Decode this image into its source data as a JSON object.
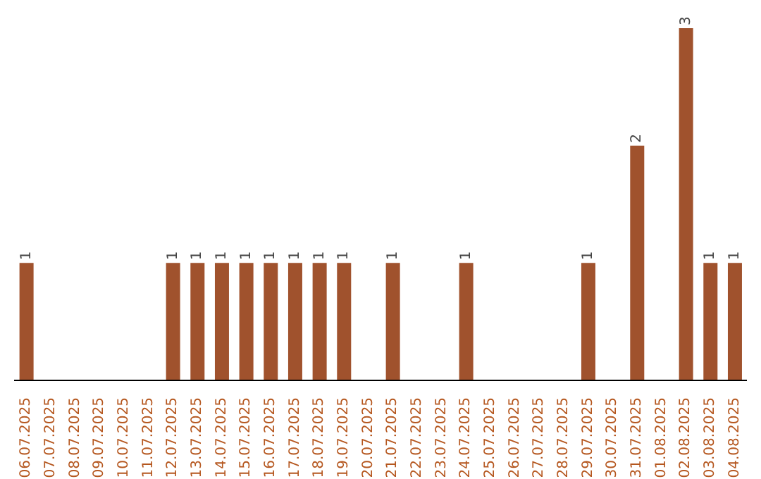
{
  "chart_data": {
    "type": "bar",
    "categories": [
      "06.07.2025",
      "07.07.2025",
      "08.07.2025",
      "09.07.2025",
      "10.07.2025",
      "11.07.2025",
      "12.07.2025",
      "13.07.2025",
      "14.07.2025",
      "15.07.2025",
      "16.07.2025",
      "17.07.2025",
      "18.07.2025",
      "19.07.2025",
      "20.07.2025",
      "21.07.2025",
      "22.07.2025",
      "23.07.2025",
      "24.07.2025",
      "25.07.2025",
      "26.07.2025",
      "27.07.2025",
      "28.07.2025",
      "29.07.2025",
      "30.07.2025",
      "31.07.2025",
      "01.08.2025",
      "02.08.2025",
      "03.08.2025",
      "04.08.2025"
    ],
    "values": [
      1,
      0,
      0,
      0,
      0,
      0,
      1,
      1,
      1,
      1,
      1,
      1,
      1,
      1,
      0,
      1,
      0,
      0,
      1,
      0,
      0,
      0,
      0,
      1,
      0,
      2,
      0,
      3,
      1,
      1
    ],
    "value_labels": [
      "1",
      null,
      null,
      null,
      null,
      null,
      "1",
      "1",
      "1",
      "1",
      "1",
      "1",
      "1",
      "1",
      null,
      "1",
      null,
      null,
      "1",
      null,
      null,
      null,
      null,
      "1",
      null,
      "2",
      null,
      "3",
      "1",
      "1"
    ],
    "color": "#a0522d"
  }
}
